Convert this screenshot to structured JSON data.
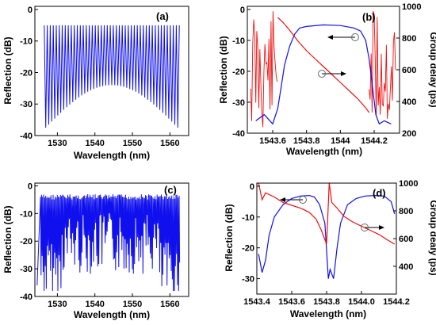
{
  "chart_data": [
    {
      "id": "a",
      "type": "line",
      "panel_label": "(a)",
      "xlabel": "Wavelength  (nm)",
      "ylabel": "Reflection  (dB)",
      "xlim": [
        1524,
        1565
      ],
      "ylim": [
        -40,
        1
      ],
      "xticks": [
        1530,
        1540,
        1550,
        1560
      ],
      "yticks": [
        0,
        -10,
        -20,
        -30,
        -40
      ],
      "series": [
        {
          "color": "#1010ee",
          "pattern": "comb",
          "x_start": 1526.5,
          "x_end": 1562.5,
          "period_nm": 0.8,
          "peak_db": -5,
          "trough_db_edge": -38,
          "trough_db_center": -24
        }
      ]
    },
    {
      "id": "b",
      "type": "line",
      "panel_label": "(b)",
      "xlabel": "Wavelength  (nm)",
      "ylabel": "Reflection  (dB)",
      "ylabel_right": "Group delay  (ps)",
      "xlim": [
        1543.45,
        1544.35
      ],
      "ylim": [
        -40,
        1
      ],
      "ylim_right": [
        200,
        1000
      ],
      "xticks": [
        1543.6,
        1543.8,
        1544.0,
        1544.2
      ],
      "yticks": [
        0,
        -10,
        -20,
        -30,
        -40
      ],
      "yticks_right": [
        200,
        400,
        600,
        800,
        1000
      ],
      "series": [
        {
          "color": "#1010ee",
          "axis": "left",
          "x": [
            1543.5,
            1543.55,
            1543.6,
            1543.63,
            1543.65,
            1543.67,
            1543.7,
            1543.73,
            1543.76,
            1543.8,
            1543.9,
            1544.0,
            1544.08,
            1544.12,
            1544.15,
            1544.17,
            1544.19,
            1544.21,
            1544.23,
            1544.26,
            1544.3
          ],
          "y": [
            -36,
            -34,
            -37,
            -32,
            -25,
            -18,
            -12,
            -8,
            -6,
            -5.5,
            -5,
            -5.2,
            -6,
            -7,
            -10,
            -16,
            -25,
            -34,
            -37,
            -36,
            -37
          ]
        },
        {
          "color": "#ee1010",
          "axis": "right",
          "x": [
            1543.63,
            1543.66,
            1543.7,
            1543.75,
            1543.8,
            1543.85,
            1543.9,
            1543.95,
            1544.0,
            1544.05,
            1544.1,
            1544.15,
            1544.17
          ],
          "y": [
            930,
            900,
            850,
            780,
            720,
            670,
            620,
            570,
            520,
            470,
            420,
            360,
            330
          ]
        }
      ]
    },
    {
      "id": "c",
      "type": "line",
      "panel_label": "(c)",
      "xlabel": "Wavelength  (nm)",
      "ylabel": "Reflection  (dB)",
      "xlim": [
        1524,
        1565
      ],
      "ylim": [
        -40,
        1
      ],
      "xticks": [
        1530,
        1540,
        1550,
        1560
      ],
      "yticks": [
        0,
        -10,
        -20,
        -30,
        -40
      ],
      "series": [
        {
          "color": "#1010ee",
          "pattern": "irregular",
          "x_start": 1525.5,
          "x_end": 1562.5,
          "peak_db": -3,
          "trough_db_range": [
            -10,
            -38
          ]
        }
      ]
    },
    {
      "id": "d",
      "type": "line",
      "panel_label": "(d)",
      "xlabel": "Wavelength  (nm)",
      "ylabel": "Reflection  (dB)",
      "ylabel_right": "Group dealy  (ps)",
      "xlim": [
        1543.4,
        1544.2
      ],
      "ylim": [
        -35,
        1
      ],
      "ylim_right": [
        200,
        1000
      ],
      "xticks": [
        1543.4,
        1543.6,
        1543.8,
        1544.0,
        1544.2
      ],
      "xtick_labels": [
        "1543.4",
        "1543.6",
        "1543.8",
        "1544.0",
        "1544.2"
      ],
      "yticks": [
        0,
        -10,
        -20,
        -30
      ],
      "yticks_right": [
        400,
        600,
        800,
        1000
      ],
      "series": [
        {
          "color": "#1010ee",
          "axis": "left",
          "x": [
            1543.41,
            1543.43,
            1543.45,
            1543.47,
            1543.5,
            1543.55,
            1543.6,
            1543.65,
            1543.7,
            1543.73,
            1543.76,
            1543.79,
            1543.81,
            1543.82,
            1543.84,
            1543.86,
            1543.88,
            1543.92,
            1543.97,
            1544.02,
            1544.08,
            1544.13,
            1544.17,
            1544.19
          ],
          "y": [
            -22,
            -28,
            -24,
            -16,
            -10,
            -6,
            -4,
            -3.2,
            -3,
            -3.5,
            -6,
            -12,
            -30,
            -27,
            -30,
            -20,
            -12,
            -6,
            -4,
            -3.2,
            -3,
            -3.2,
            -5,
            -9
          ]
        },
        {
          "color": "#ee1010",
          "axis": "right",
          "x": [
            1543.41,
            1543.43,
            1543.45,
            1543.5,
            1543.55,
            1543.6,
            1543.65,
            1543.7,
            1543.74,
            1543.77,
            1543.8,
            1543.815,
            1543.83,
            1543.86,
            1543.9,
            1543.95,
            1544.0,
            1544.05,
            1544.1,
            1544.15,
            1544.19
          ],
          "y": [
            1000,
            880,
            930,
            900,
            860,
            840,
            820,
            790,
            740,
            660,
            560,
            1000,
            860,
            820,
            760,
            720,
            690,
            660,
            630,
            590,
            560
          ]
        }
      ]
    }
  ]
}
